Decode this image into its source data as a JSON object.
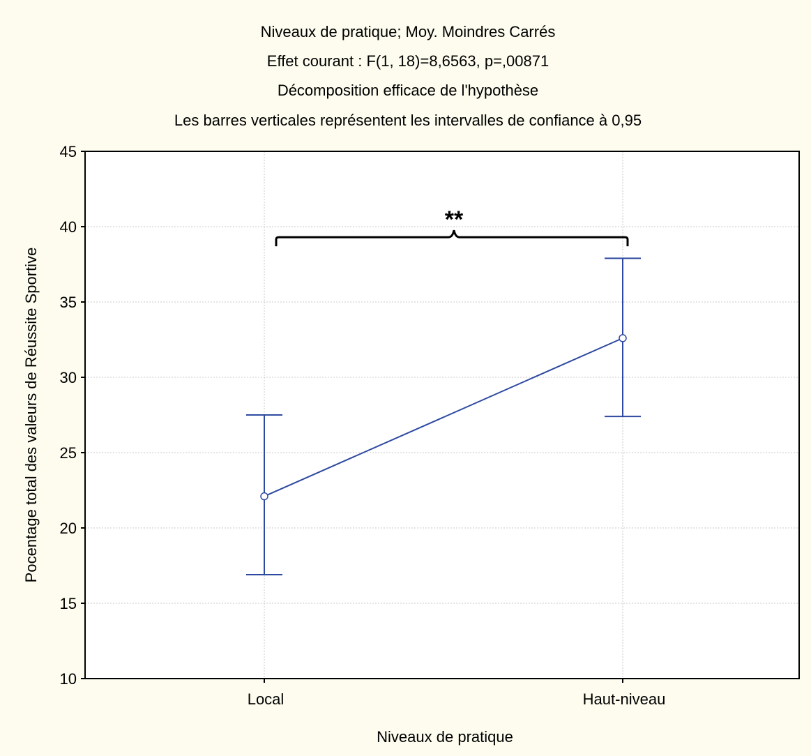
{
  "chart_data": {
    "type": "line",
    "title_lines": [
      "Niveaux de pratique; Moy. Moindres Carrés",
      "Effet courant : F(1, 18)=8,6563, p=,00871",
      "Décomposition efficace de l'hypothèse",
      "Les barres verticales représentent les intervalles de confiance à 0,95"
    ],
    "xlabel": "Niveaux de pratique",
    "ylabel": "Pocentage total des valeurs de Réussite Sportive",
    "categories": [
      "Local",
      "Haut-niveau"
    ],
    "series": [
      {
        "values": [
          22.1,
          32.6
        ],
        "ci_lower": [
          16.9,
          27.4
        ],
        "ci_upper": [
          27.5,
          37.9
        ]
      }
    ],
    "ylim": [
      10,
      45
    ],
    "yticks": [
      10,
      15,
      20,
      25,
      30,
      35,
      40,
      45
    ],
    "grid": true,
    "annotation": {
      "text": "**",
      "between": [
        "Local",
        "Haut-niveau"
      ],
      "y": 39.3
    }
  },
  "colors": {
    "series": "#2e4aa0",
    "background": "#fdfcef",
    "plot_background": "#ffffff",
    "grid": "#c8c8c8",
    "bracket": "#000000"
  }
}
